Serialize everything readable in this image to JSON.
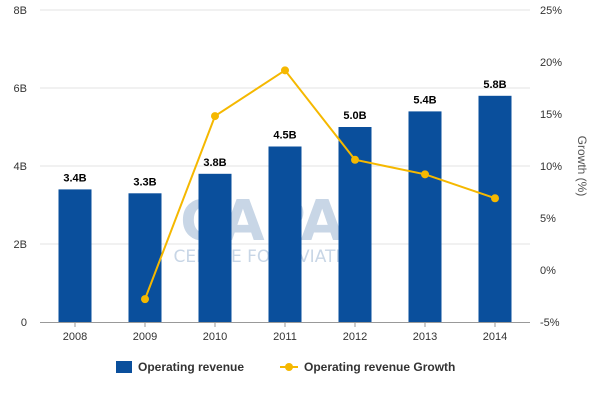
{
  "chart_data": {
    "type": "bar",
    "categories": [
      "2008",
      "2009",
      "2010",
      "2011",
      "2012",
      "2013",
      "2014"
    ],
    "series": [
      {
        "name": "Operating revenue",
        "type": "bar",
        "axis": "left",
        "values": [
          3.4,
          3.3,
          3.8,
          4.5,
          5.0,
          5.4,
          5.8
        ],
        "labels": [
          "3.4B",
          "3.3B",
          "3.8B",
          "4.5B",
          "5.0B",
          "5.4B",
          "5.8B"
        ],
        "color": "#0a4f9c"
      },
      {
        "name": "Operating revenue Growth",
        "type": "line",
        "axis": "right",
        "values": [
          null,
          -2.8,
          14.8,
          19.2,
          10.6,
          9.2,
          6.9
        ],
        "color": "#f5b800"
      }
    ],
    "y_left": {
      "min": 0,
      "max": 8,
      "ticks": [
        0,
        2,
        4,
        6,
        8
      ],
      "tick_labels": [
        "0",
        "2B",
        "4B",
        "6B",
        "8B"
      ]
    },
    "y_right": {
      "min": -5,
      "max": 25,
      "ticks": [
        -5,
        0,
        5,
        10,
        15,
        20,
        25
      ],
      "tick_labels": [
        "-5%",
        "0%",
        "5%",
        "10%",
        "15%",
        "20%",
        "25%"
      ],
      "label": "Growth (%)"
    },
    "title": "",
    "xlabel": "",
    "grid": true,
    "legend_position": "bottom"
  },
  "watermark": {
    "main": "CAPA",
    "sub": "CENTRE FOR AVIATION"
  }
}
